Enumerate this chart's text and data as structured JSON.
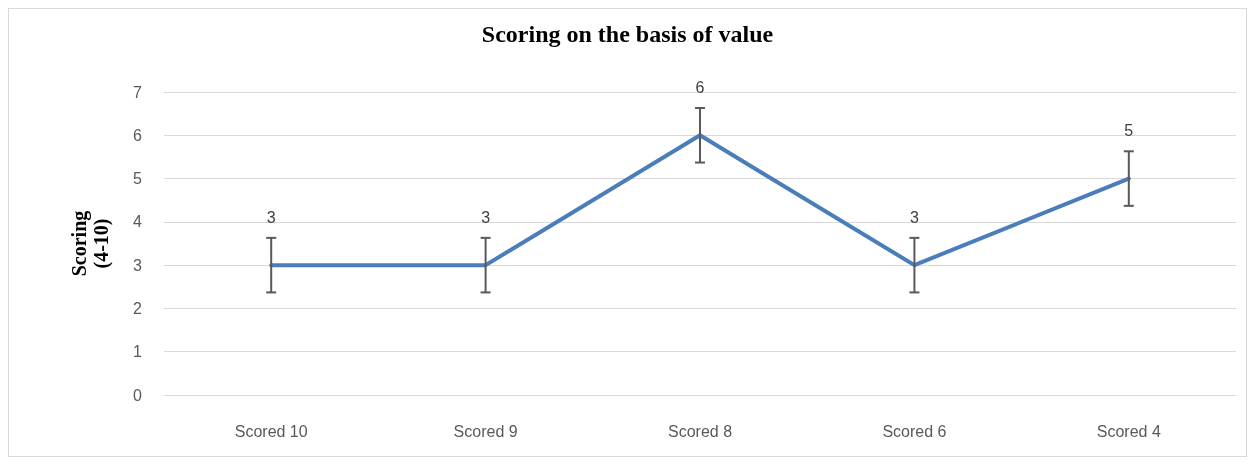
{
  "chart_data": {
    "type": "line",
    "title": "Scoring on the basis of value",
    "ylabel": "Scoring\n(4-10)",
    "categories": [
      "Scored 10",
      "Scored 9",
      "Scored 8",
      "Scored 6",
      "Scored 4"
    ],
    "series": [
      {
        "color": "#4a7ebb",
        "values": [
          3,
          3,
          6,
          3,
          5
        ],
        "errors": [
          0.63,
          0.63,
          0.63,
          0.63,
          0.63
        ]
      }
    ],
    "ylim": [
      0,
      7
    ],
    "yticks": [
      0,
      1,
      2,
      3,
      4,
      5,
      6,
      7
    ],
    "grid": "y",
    "data_labels": true,
    "marker": "none",
    "line_style": "solid"
  }
}
